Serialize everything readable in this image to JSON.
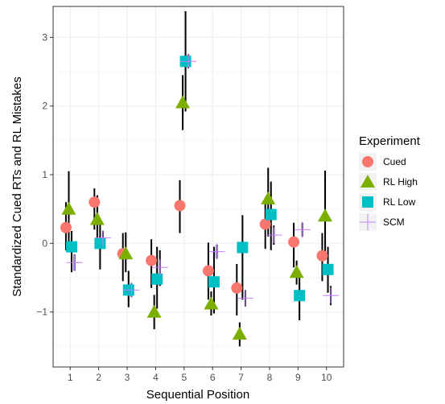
{
  "chart_data": {
    "type": "scatter",
    "title": "",
    "xlabel": "Sequential Position",
    "ylabel": "Standardized Cued RTs and RL Mistakes",
    "x": [
      1,
      2,
      3,
      4,
      5,
      6,
      7,
      8,
      9,
      10
    ],
    "x_ticks": [
      "1",
      "2",
      "3",
      "4",
      "5",
      "6",
      "7",
      "8",
      "9",
      "10"
    ],
    "xlim": [
      0.4,
      10.6
    ],
    "ylim": [
      -1.8,
      3.45
    ],
    "y_ticks": [
      3,
      2,
      1,
      0,
      -1
    ],
    "y_tick_labels": [
      "3",
      "2",
      "1",
      "0",
      "−1"
    ],
    "grid": true,
    "legend": {
      "title": "Experiment",
      "placement": "right"
    },
    "series": [
      {
        "name": "Cued",
        "shape": "circle",
        "color": "#F8766D",
        "offset": -0.15,
        "values": [
          0.23,
          0.6,
          -0.15,
          -0.25,
          0.55,
          -0.4,
          -0.65,
          0.28,
          0.02,
          -0.18
        ],
        "lower": [
          -0.1,
          0.2,
          -0.55,
          -0.65,
          0.15,
          -0.82,
          -1.05,
          -0.08,
          -0.35,
          -0.55
        ],
        "upper": [
          0.6,
          0.8,
          0.15,
          0.06,
          0.92,
          0.01,
          -0.3,
          0.65,
          0.3,
          0.15
        ]
      },
      {
        "name": "RL High",
        "shape": "triangle",
        "color": "#7CAE00",
        "offset": -0.05,
        "values": [
          0.5,
          0.35,
          -0.15,
          -1.0,
          2.05,
          -0.88,
          -1.32,
          0.65,
          -0.42,
          0.4
        ],
        "lower": [
          -0.1,
          0.0,
          -0.42,
          -1.25,
          1.65,
          -1.05,
          -1.5,
          0.1,
          -0.6,
          -0.18
        ],
        "upper": [
          1.05,
          0.7,
          0.16,
          -0.75,
          2.45,
          -0.7,
          -1.15,
          1.1,
          -0.25,
          1.06
        ]
      },
      {
        "name": "RL Low",
        "shape": "square",
        "color": "#00BFC4",
        "offset": 0.05,
        "values": [
          -0.05,
          0.0,
          -0.68,
          -0.52,
          2.65,
          -0.56,
          -0.06,
          0.42,
          -0.76,
          -0.38
        ],
        "lower": [
          -0.42,
          -0.38,
          -0.93,
          -0.95,
          1.92,
          -1.02,
          -0.82,
          -0.1,
          -1.12,
          -0.72
        ],
        "upper": [
          0.18,
          0.3,
          -0.4,
          -0.05,
          3.38,
          -0.05,
          0.41,
          0.9,
          -0.4,
          -0.05
        ]
      },
      {
        "name": "SCM",
        "shape": "cross",
        "color": "#C77CFF",
        "offset": 0.15,
        "values": [
          -0.28,
          0.08,
          -0.68,
          -0.35,
          2.65,
          -0.12,
          -0.8,
          0.12,
          0.2,
          -0.76
        ],
        "lower": [
          -0.4,
          -0.02,
          -0.78,
          -0.62,
          2.55,
          -0.22,
          -0.92,
          -0.02,
          0.1,
          -0.9
        ],
        "upper": [
          -0.16,
          0.18,
          -0.58,
          -0.1,
          2.75,
          -0.02,
          -0.68,
          0.26,
          0.3,
          -0.62
        ]
      }
    ]
  }
}
